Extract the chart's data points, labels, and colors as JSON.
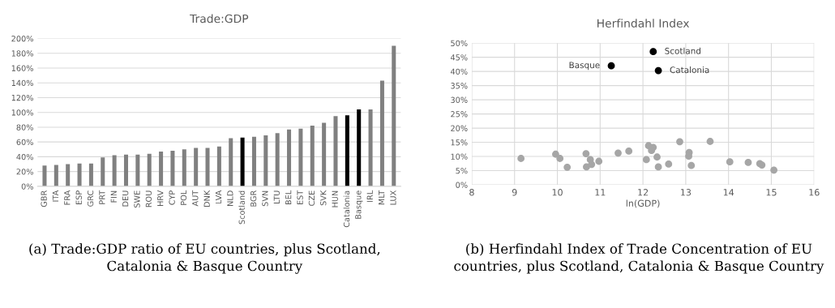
{
  "chart_data": [
    {
      "type": "bar",
      "title": "Trade:GDP",
      "categories": [
        "GBR",
        "ITA",
        "FRA",
        "ESP",
        "GRC",
        "PRT",
        "FIN",
        "DEU",
        "SWE",
        "ROU",
        "HRV",
        "CYP",
        "POL",
        "AUT",
        "DNK",
        "LVA",
        "NLD",
        "Scotland",
        "BGR",
        "SVN",
        "LTU",
        "BEL",
        "EST",
        "CZE",
        "SVK",
        "HUN",
        "Catalonia",
        "Basque",
        "IRL",
        "MLT",
        "LUX"
      ],
      "values": [
        28,
        29,
        30,
        31,
        31,
        39,
        42,
        43,
        43,
        44,
        47,
        48,
        50,
        52,
        52,
        54,
        65,
        66,
        67,
        69,
        72,
        77,
        78,
        82,
        86,
        95,
        96,
        104,
        104,
        143,
        190
      ],
      "colors": [
        "#808080",
        "#808080",
        "#808080",
        "#808080",
        "#808080",
        "#808080",
        "#808080",
        "#808080",
        "#808080",
        "#808080",
        "#808080",
        "#808080",
        "#808080",
        "#808080",
        "#808080",
        "#808080",
        "#808080",
        "#000000",
        "#808080",
        "#808080",
        "#808080",
        "#808080",
        "#808080",
        "#808080",
        "#808080",
        "#808080",
        "#000000",
        "#000000",
        "#808080",
        "#808080",
        "#808080"
      ],
      "ylim": [
        0,
        200
      ],
      "yticks": [
        {
          "value": 0,
          "label": "0%"
        },
        {
          "value": 20,
          "label": "20%"
        },
        {
          "value": 40,
          "label": "40%"
        },
        {
          "value": 60,
          "label": "60%"
        },
        {
          "value": 80,
          "label": "80%"
        },
        {
          "value": 100,
          "label": "100%"
        },
        {
          "value": 120,
          "label": "120%"
        },
        {
          "value": 140,
          "label": "140%"
        },
        {
          "value": 160,
          "label": "160%"
        },
        {
          "value": 180,
          "label": "180%"
        },
        {
          "value": 200,
          "label": "200%"
        }
      ],
      "grid": "y",
      "annotations": [
        "(a) Trade:GDP ratio of EU countries, plus Scotland, Catalonia & Basque Country"
      ]
    },
    {
      "type": "scatter",
      "title": "Herfindahl Index",
      "xlabel": "ln(GDP)",
      "marker": "circle",
      "series": [
        {
          "color": "#a6a6a6",
          "x": [
            9.15,
            9.96,
            10.06,
            10.23,
            10.67,
            10.77,
            10.68,
            10.8,
            10.97,
            11.42,
            11.67,
            12.13,
            12.24,
            12.2,
            12.08,
            12.33,
            12.36,
            12.6,
            12.86,
            13.08,
            13.07,
            13.13,
            13.57,
            14.03,
            14.46,
            14.73,
            14.78,
            15.06
          ],
          "values": [
            9.3,
            10.8,
            9.3,
            6.2,
            11,
            8.9,
            6.3,
            7.2,
            8.3,
            11.2,
            11.9,
            13.8,
            13.2,
            12.1,
            8.9,
            9.8,
            6.3,
            7.3,
            15.2,
            11.4,
            10.1,
            6.8,
            15.3,
            8.1,
            7.9,
            7.5,
            7,
            5.2
          ]
        },
        {
          "color": "#000000",
          "x": [
            12.24,
            11.26,
            12.36
          ],
          "values": [
            47,
            42,
            40.3
          ]
        }
      ],
      "xlim": [
        8,
        16
      ],
      "xticks": [
        8,
        9,
        10,
        11,
        12,
        13,
        14,
        15,
        16
      ],
      "ylim": [
        0,
        50
      ],
      "yticks": [
        {
          "value": 0,
          "label": "0%"
        },
        {
          "value": 5,
          "label": "5%"
        },
        {
          "value": 10,
          "label": "10%"
        },
        {
          "value": 15,
          "label": "15%"
        },
        {
          "value": 20,
          "label": "20%"
        },
        {
          "value": 25,
          "label": "25%"
        },
        {
          "value": 30,
          "label": "30%"
        },
        {
          "value": 35,
          "label": "35%"
        },
        {
          "value": 40,
          "label": "40%"
        },
        {
          "value": 45,
          "label": "45%"
        },
        {
          "value": 50,
          "label": "50%"
        }
      ],
      "grid": true,
      "annotations": [
        {
          "text": "Scotland",
          "x": 12.24,
          "y": 47
        },
        {
          "text": "Basque",
          "x": 11.26,
          "y": 42
        },
        {
          "text": "Catalonia",
          "x": 12.36,
          "y": 40.3
        },
        "(b) Herfindahl Index of Trade Concentration of EU countries, plus Scotland, Catalonia & Basque Country"
      ]
    }
  ]
}
